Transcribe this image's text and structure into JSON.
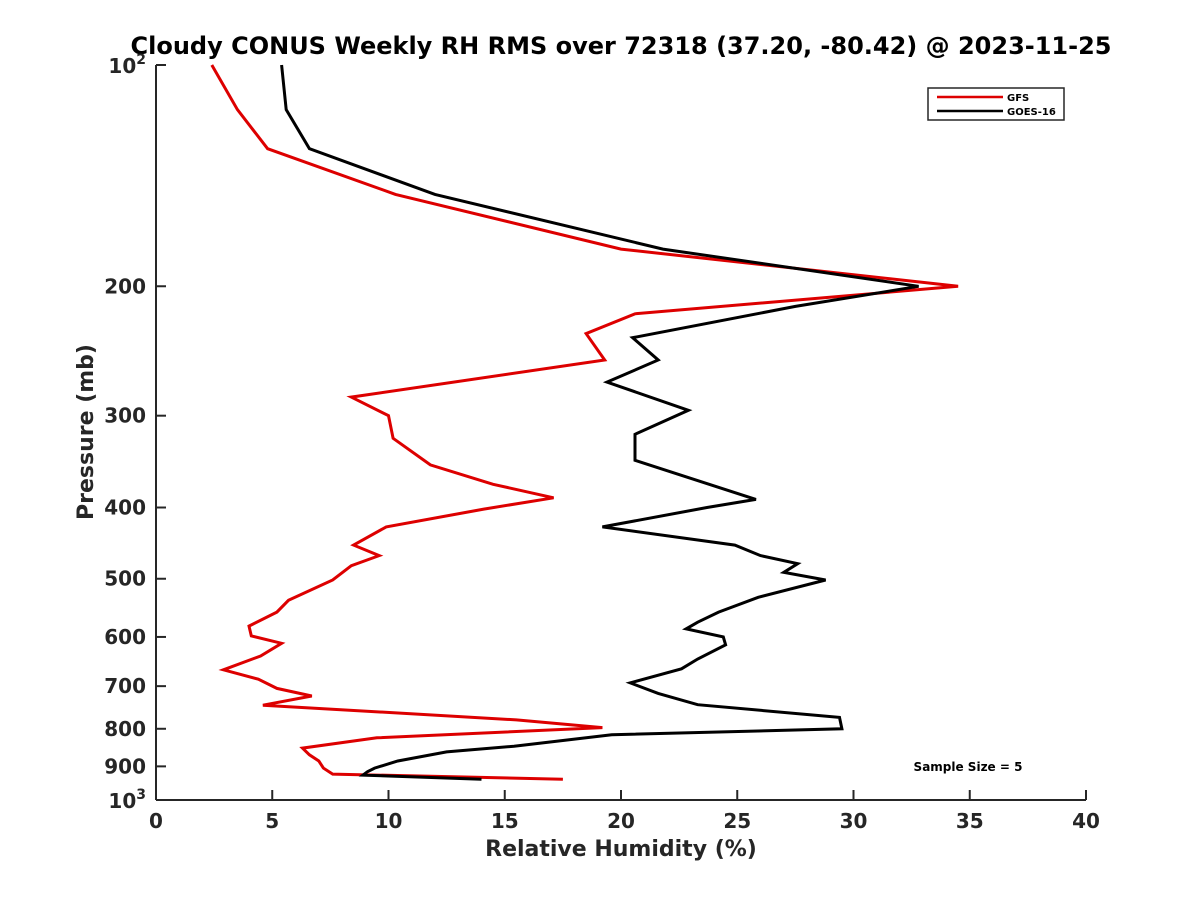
{
  "chart_data": {
    "type": "line",
    "title": "Cloudy CONUS Weekly RH RMS over 72318 (37.20, -80.42) @ 2023-11-25",
    "xlabel": "Relative Humidity (%)",
    "ylabel": "Pressure (mb)",
    "xlim": [
      0,
      40
    ],
    "ylim": [
      100,
      1000
    ],
    "y_scale": "log",
    "y_reversed": true,
    "x_ticks": [
      {
        "value": 0,
        "label": "0"
      },
      {
        "value": 5,
        "label": "5"
      },
      {
        "value": 10,
        "label": "10"
      },
      {
        "value": 15,
        "label": "15"
      },
      {
        "value": 20,
        "label": "20"
      },
      {
        "value": 25,
        "label": "25"
      },
      {
        "value": 30,
        "label": "30"
      },
      {
        "value": 35,
        "label": "35"
      },
      {
        "value": 40,
        "label": "40"
      }
    ],
    "y_ticks": [
      {
        "value": 100,
        "base": "10",
        "exp": "2"
      },
      {
        "value": 200,
        "label": "200"
      },
      {
        "value": 300,
        "label": "300"
      },
      {
        "value": 400,
        "label": "400"
      },
      {
        "value": 500,
        "label": "500"
      },
      {
        "value": 600,
        "label": "600"
      },
      {
        "value": 700,
        "label": "700"
      },
      {
        "value": 800,
        "label": "800"
      },
      {
        "value": 900,
        "label": "900"
      },
      {
        "value": 1000,
        "base": "10",
        "exp": "3"
      }
    ],
    "legend": {
      "position": "top-right",
      "entries": [
        "GFS",
        "GOES-16"
      ]
    },
    "annotation": "Sample Size = 5",
    "series": [
      {
        "name": "GFS",
        "color": "#dd0000",
        "points": [
          [
            2.4,
            100
          ],
          [
            3.5,
            115
          ],
          [
            4.8,
            130
          ],
          [
            10.3,
            150
          ],
          [
            20.0,
            178
          ],
          [
            34.5,
            200
          ],
          [
            20.6,
            218
          ],
          [
            18.5,
            232
          ],
          [
            19.3,
            252
          ],
          [
            8.4,
            283
          ],
          [
            10.0,
            300
          ],
          [
            10.2,
            322
          ],
          [
            11.8,
            350
          ],
          [
            14.5,
            372
          ],
          [
            17.1,
            388
          ],
          [
            14.1,
            402
          ],
          [
            9.9,
            425
          ],
          [
            8.5,
            450
          ],
          [
            9.6,
            465
          ],
          [
            8.4,
            480
          ],
          [
            7.6,
            502
          ],
          [
            5.7,
            535
          ],
          [
            5.2,
            555
          ],
          [
            4.0,
            580
          ],
          [
            4.1,
            598
          ],
          [
            5.4,
            612
          ],
          [
            4.5,
            637
          ],
          [
            2.9,
            665
          ],
          [
            4.4,
            685
          ],
          [
            5.2,
            705
          ],
          [
            6.7,
            722
          ],
          [
            4.6,
            743
          ],
          [
            15.5,
            778
          ],
          [
            19.2,
            797
          ],
          [
            9.5,
            823
          ],
          [
            6.3,
            850
          ],
          [
            6.6,
            868
          ],
          [
            7.0,
            885
          ],
          [
            7.2,
            905
          ],
          [
            7.6,
            922
          ],
          [
            17.5,
            937
          ]
        ]
      },
      {
        "name": "GOES-16",
        "color": "#000000",
        "points": [
          [
            5.4,
            100
          ],
          [
            5.6,
            115
          ],
          [
            6.6,
            130
          ],
          [
            12.0,
            150
          ],
          [
            21.8,
            178
          ],
          [
            32.8,
            200
          ],
          [
            27.5,
            213
          ],
          [
            20.5,
            235
          ],
          [
            21.6,
            252
          ],
          [
            19.4,
            270
          ],
          [
            22.9,
            295
          ],
          [
            20.6,
            318
          ],
          [
            20.6,
            345
          ],
          [
            25.8,
            390
          ],
          [
            23.7,
            400
          ],
          [
            19.2,
            425
          ],
          [
            24.9,
            450
          ],
          [
            26.0,
            465
          ],
          [
            27.6,
            477
          ],
          [
            27.0,
            490
          ],
          [
            28.8,
            502
          ],
          [
            25.9,
            530
          ],
          [
            24.2,
            555
          ],
          [
            23.3,
            573
          ],
          [
            22.8,
            585
          ],
          [
            24.4,
            600
          ],
          [
            24.5,
            615
          ],
          [
            23.3,
            643
          ],
          [
            22.6,
            663
          ],
          [
            20.4,
            693
          ],
          [
            21.6,
            716
          ],
          [
            23.3,
            742
          ],
          [
            29.4,
            772
          ],
          [
            29.5,
            800
          ],
          [
            19.6,
            815
          ],
          [
            15.4,
            845
          ],
          [
            12.5,
            860
          ],
          [
            10.4,
            885
          ],
          [
            9.4,
            905
          ],
          [
            9.1,
            915
          ],
          [
            8.9,
            925
          ],
          [
            14.0,
            937
          ]
        ]
      }
    ]
  }
}
